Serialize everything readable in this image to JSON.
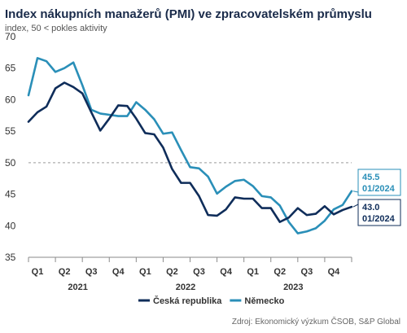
{
  "chart_data": {
    "type": "line",
    "title": "Index nákupních manažerů (PMI) ve zpracovatelském průmyslu",
    "subtitle": "index, 50 < pokles aktivity",
    "ylim": [
      35,
      70
    ],
    "yticks": [
      "35",
      "40",
      "45",
      "50",
      "55",
      "60",
      "65",
      "70"
    ],
    "reference_line": 50,
    "quarter_labels": [
      "Q1",
      "Q2",
      "Q3",
      "Q4",
      "Q1",
      "Q2",
      "Q3",
      "Q4",
      "Q1",
      "Q2",
      "Q3",
      "Q4"
    ],
    "year_labels": [
      "2021",
      "2022",
      "2023"
    ],
    "x": [
      "01/2021",
      "02/2021",
      "03/2021",
      "04/2021",
      "05/2021",
      "06/2021",
      "07/2021",
      "08/2021",
      "09/2021",
      "10/2021",
      "11/2021",
      "12/2021",
      "01/2022",
      "02/2022",
      "03/2022",
      "04/2022",
      "05/2022",
      "06/2022",
      "07/2022",
      "08/2022",
      "09/2022",
      "10/2022",
      "11/2022",
      "12/2022",
      "01/2023",
      "02/2023",
      "03/2023",
      "04/2023",
      "05/2023",
      "06/2023",
      "07/2023",
      "08/2023",
      "09/2023",
      "10/2023",
      "11/2023",
      "12/2023",
      "01/2024"
    ],
    "series": [
      {
        "name": "Česká republika",
        "color": "#0f2d5a",
        "values": [
          56.5,
          58.0,
          58.9,
          61.8,
          62.7,
          62.0,
          61.0,
          58.0,
          55.1,
          57.0,
          59.1,
          59.0,
          57.0,
          54.7,
          54.5,
          52.4,
          49.0,
          46.8,
          46.8,
          44.7,
          41.7,
          41.6,
          42.6,
          44.5,
          44.3,
          44.3,
          42.8,
          42.8,
          40.6,
          41.3,
          42.8,
          41.7,
          41.9,
          43.1,
          41.8,
          42.5,
          43.0
        ]
      },
      {
        "name": "Německo",
        "color": "#2a8fb8",
        "values": [
          60.7,
          66.6,
          66.1,
          64.4,
          65.0,
          65.9,
          62.3,
          58.4,
          57.8,
          57.6,
          57.4,
          57.4,
          59.6,
          58.4,
          56.9,
          54.6,
          54.8,
          52.0,
          49.3,
          49.1,
          47.8,
          45.1,
          46.2,
          47.1,
          47.3,
          46.3,
          44.7,
          44.5,
          43.2,
          40.6,
          38.8,
          39.1,
          39.6,
          40.8,
          42.6,
          43.3,
          45.5
        ]
      }
    ],
    "annotations": [
      {
        "series": "Německo",
        "value": "45.5",
        "date": "01/2024"
      },
      {
        "series": "Česká republika",
        "value": "43.0",
        "date": "01/2024"
      }
    ],
    "legend_position": "bottom",
    "grid": false
  },
  "source": "Zdroj: Ekonomický výzkum ČSOB, S&P Global"
}
